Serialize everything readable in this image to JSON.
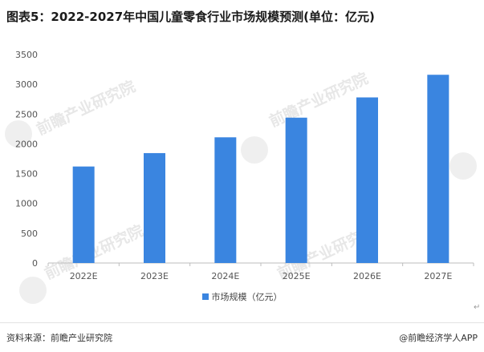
{
  "title": "图表5：2022-2027年中国儿童零食行业市场规模预测(单位：亿元)",
  "source": "资料来源：前瞻产业研究院",
  "brand": "@前瞻经济学人APP",
  "watermark": "前瞻产业研究院",
  "colors": {
    "bar": "#3a85e0",
    "grid": "#dedede",
    "axis": "#bdbdbd",
    "tick_text": "#555555"
  },
  "chart_data": {
    "type": "bar",
    "categories": [
      "2022E",
      "2023E",
      "2024E",
      "2025E",
      "2026E",
      "2027E"
    ],
    "series": [
      {
        "name": "市场规模（亿元）",
        "values": [
          1620,
          1845,
          2110,
          2440,
          2780,
          3160
        ]
      }
    ],
    "yticks": [
      0,
      500,
      1000,
      1500,
      2000,
      2500,
      3000,
      3500
    ],
    "ylim": [
      0,
      3500
    ],
    "grid": false,
    "legend_position": "bottom"
  }
}
